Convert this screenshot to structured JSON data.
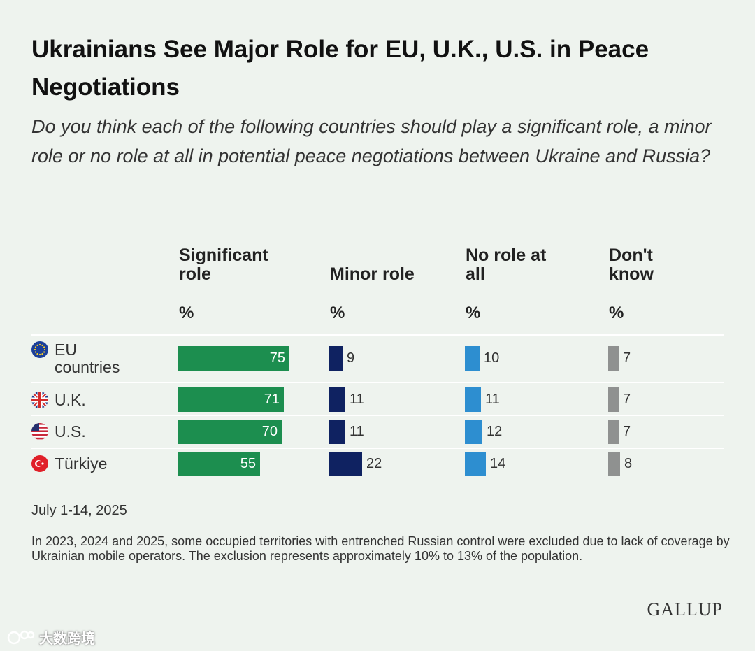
{
  "title": "Ukrainians See Major Role for EU, U.K., U.S. in Peace Negotiations",
  "subtitle": "Do you think each of the following countries should play a significant role, a minor role or no role at all in potential peace negotiations between Ukraine and Russia?",
  "columns": [
    {
      "label_line1": "Significant",
      "label_line2": "role",
      "unit": "%"
    },
    {
      "label_line1": "Minor role",
      "label_line2": "",
      "unit": "%"
    },
    {
      "label_line1": "No role at",
      "label_line2": "all",
      "unit": "%"
    },
    {
      "label_line1": "Don't",
      "label_line2": "know",
      "unit": "%"
    }
  ],
  "rows": [
    {
      "label_line1": "EU",
      "label_line2": "countries",
      "flag": "eu-flag-icon"
    },
    {
      "label_line1": "U.K.",
      "label_line2": "",
      "flag": "uk-flag-icon"
    },
    {
      "label_line1": "U.S.",
      "label_line2": "",
      "flag": "us-flag-icon"
    },
    {
      "label_line1": "Türkiye",
      "label_line2": "",
      "flag": "turkey-flag-icon"
    }
  ],
  "chart_data": {
    "type": "bar",
    "orientation": "horizontal",
    "title": "Ukrainians See Major Role for EU, U.K., U.S. in Peace Negotiations",
    "categories": [
      "EU countries",
      "U.K.",
      "U.S.",
      "Türkiye"
    ],
    "series": [
      {
        "name": "Significant role",
        "color": "#1c8e4f",
        "values": [
          75,
          71,
          70,
          55
        ]
      },
      {
        "name": "Minor role",
        "color": "#0f2261",
        "values": [
          9,
          11,
          11,
          22
        ]
      },
      {
        "name": "No role at all",
        "color": "#2d8ed0",
        "values": [
          10,
          11,
          12,
          14
        ]
      },
      {
        "name": "Don't know",
        "color": "#8f9190",
        "values": [
          7,
          7,
          7,
          8
        ]
      }
    ],
    "unit": "%"
  },
  "footer": {
    "date": "July 1-14, 2025",
    "note": "In 2023, 2024 and 2025, some occupied territories with entrenched Russian control were excluded due to lack of coverage by Ukrainian mobile operators. The exclusion represents approximately 10% to 13% of the population.",
    "brand": "GALLUP"
  },
  "watermark": {
    "text": "大数跨境",
    "icon": "watermark-logo-icon"
  }
}
